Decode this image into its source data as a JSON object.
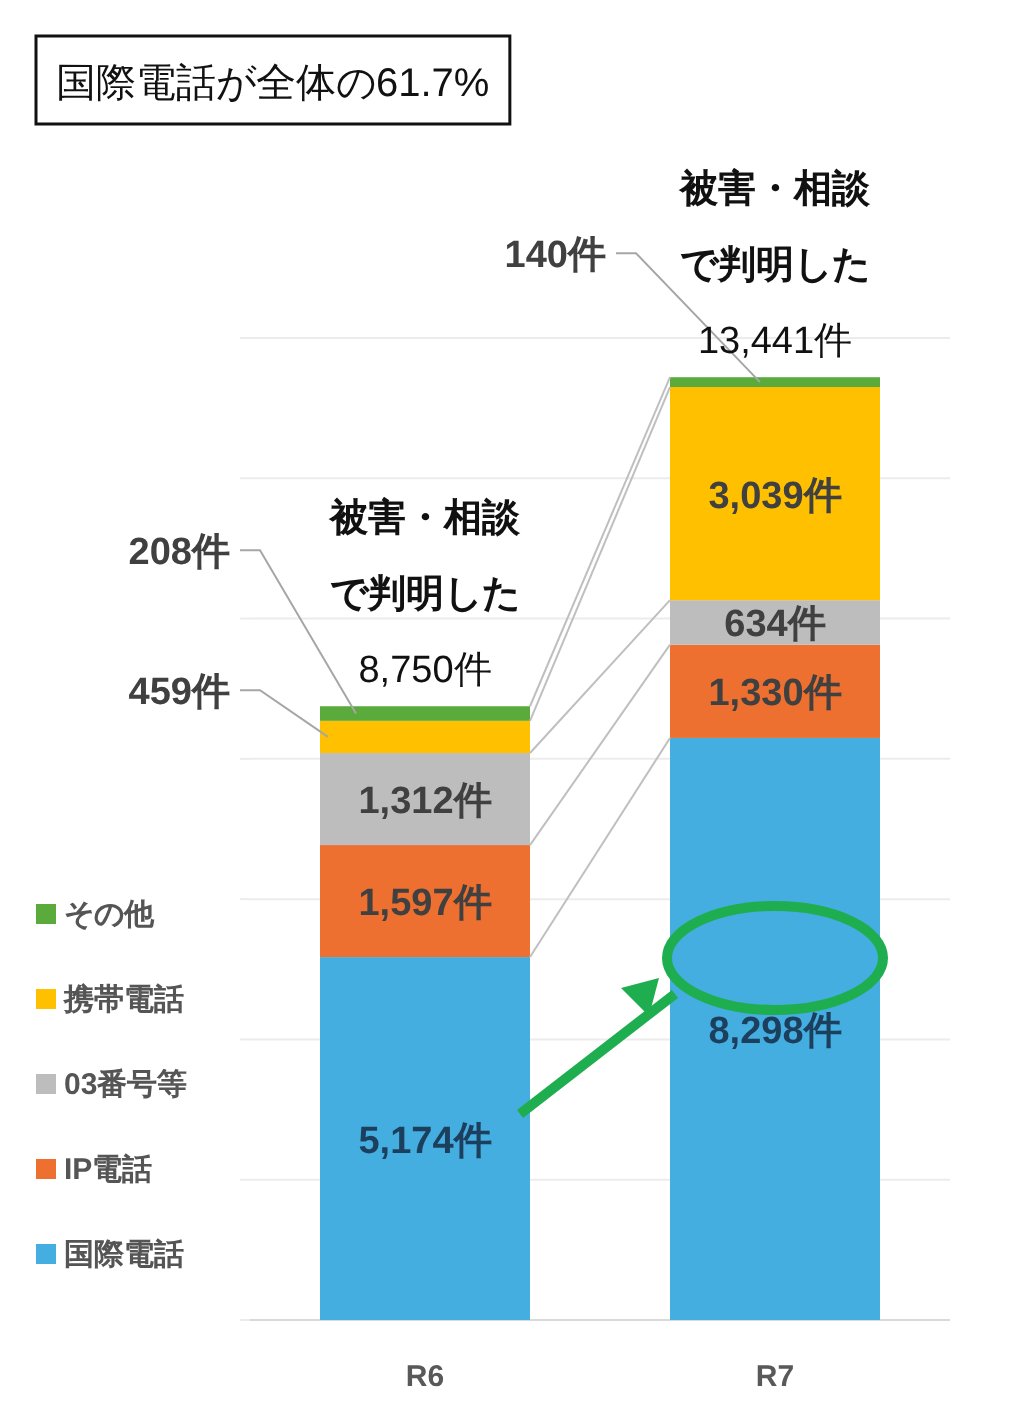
{
  "chart_data": {
    "type": "bar",
    "stacked": true,
    "title": "国際電話が全体の61.7%",
    "categories": [
      "R6",
      "R7"
    ],
    "series": [
      {
        "name": "国際電話",
        "color": "#45aee0",
        "values": [
          5174,
          8298
        ],
        "value_labels": [
          "5,174件",
          "8,298件"
        ]
      },
      {
        "name": "IP電話",
        "color": "#ed7031",
        "values": [
          1597,
          1330
        ],
        "value_labels": [
          "1,597件",
          "1,330件"
        ]
      },
      {
        "name": "03番号等",
        "color": "#bdbdbd",
        "values": [
          1312,
          634
        ],
        "value_labels": [
          "1,312件",
          "634件"
        ]
      },
      {
        "name": "携帯電話",
        "color": "#ffc000",
        "values": [
          459,
          3039
        ],
        "value_labels": [
          "459件",
          "3,039件"
        ]
      },
      {
        "name": "その他",
        "color": "#5aab3c",
        "values": [
          208,
          140
        ],
        "value_labels": [
          "208件",
          "140件"
        ]
      }
    ],
    "totals": [
      "8,750件",
      "13,441件"
    ],
    "annotations": [
      "被害・相談で判明した",
      "被害・相談で判明した"
    ],
    "yticks": [
      {
        "value": 0,
        "label": null
      },
      {
        "value": 2000,
        "label": null
      },
      {
        "value": 4000,
        "label": null
      },
      {
        "value": 6000,
        "label": null
      },
      {
        "value": 8000,
        "label": null
      },
      {
        "value": 10000,
        "label": null
      },
      {
        "value": 12000,
        "label": null
      },
      {
        "value": 14000,
        "label": null
      }
    ],
    "tick_labels": "x",
    "grid": "y",
    "legend": "left"
  }
}
